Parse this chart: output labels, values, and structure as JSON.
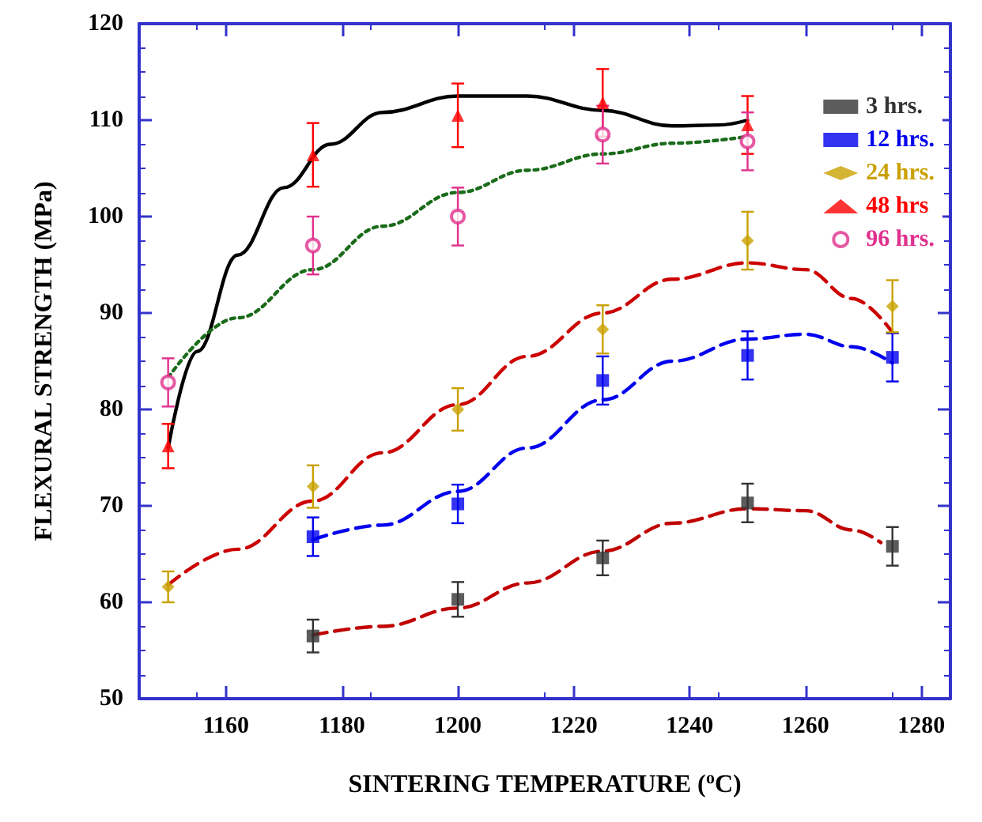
{
  "chart_data": {
    "type": "scatter",
    "xlabel": "SINTERING TEMPERATURE ($^{o}$C)",
    "ylabel": "FLEXURAL STRENGTH (MPa)",
    "xlim": [
      1145,
      1285
    ],
    "xticks": [
      1160,
      1180,
      1200,
      1220,
      1240,
      1260,
      1280
    ],
    "ylim": [
      50,
      120
    ],
    "yticks": [
      50,
      60,
      70,
      80,
      90,
      100,
      110,
      120
    ],
    "grid": false,
    "legend": "top right",
    "series": [
      {
        "name": "3 hrs.",
        "color": "#333333",
        "marker": "square",
        "x": [
          1175,
          1200,
          1225,
          1250,
          1275
        ],
        "values": [
          56.5,
          60.3,
          64.6,
          70.3,
          65.8
        ],
        "errors": [
          1.7,
          1.8,
          1.8,
          2,
          2
        ]
      },
      {
        "name": "12 hrs.",
        "color": "#0000ee",
        "marker": "square",
        "x": [
          1175,
          1200,
          1225,
          1250,
          1275
        ],
        "values": [
          66.8,
          70.2,
          83,
          85.6,
          85.4
        ],
        "errors": [
          2,
          2,
          2.5,
          2.5,
          2.5
        ]
      },
      {
        "name": "24 hrs.",
        "color": "#c9a100",
        "marker": "diamond",
        "x": [
          1150,
          1175,
          1200,
          1225,
          1250,
          1275
        ],
        "values": [
          61.6,
          72,
          80,
          88.3,
          97.5,
          90.7
        ],
        "errors": [
          1.6,
          2.2,
          2.2,
          2.5,
          3,
          2.7
        ]
      },
      {
        "name": "48 hrs",
        "color": "#ff0000",
        "marker": "triangle",
        "x": [
          1150,
          1175,
          1200,
          1225,
          1250
        ],
        "values": [
          76.2,
          106.4,
          110.5,
          111.8,
          109.5
        ],
        "errors": [
          2.3,
          3.3,
          3.3,
          3.5,
          3
        ]
      },
      {
        "name": "96 hrs.",
        "color": "#e0308c",
        "marker": "circle",
        "x": [
          1150,
          1175,
          1200,
          1225,
          1250
        ],
        "values": [
          82.8,
          97,
          100,
          108.5,
          107.8
        ],
        "errors": [
          2.5,
          3,
          3,
          3,
          3
        ]
      },
      {
        "type": "line",
        "color": "#c00000",
        "line_style": "dashed",
        "marker": "none",
        "x": [
          1175,
          1187,
          1200,
          1212,
          1225,
          1237,
          1250,
          1260,
          1268,
          1273
        ],
        "values": [
          56.6,
          57.5,
          59.4,
          62,
          65.3,
          68.2,
          69.7,
          69.5,
          67.5,
          66.2
        ]
      },
      {
        "type": "line",
        "color": "#0000ee",
        "line_style": "dashed",
        "marker": "none",
        "x": [
          1175,
          1187,
          1200,
          1212,
          1225,
          1237,
          1250,
          1260,
          1268,
          1275
        ],
        "values": [
          66.5,
          68,
          71.5,
          76,
          81,
          85,
          87.3,
          87.8,
          86.5,
          84.8
        ]
      },
      {
        "type": "line",
        "color": "#cc0000",
        "line_style": "dashed",
        "marker": "none",
        "x": [
          1150,
          1162,
          1175,
          1187,
          1200,
          1212,
          1225,
          1237,
          1250,
          1260,
          1268,
          1275
        ],
        "values": [
          61.8,
          65.5,
          70.5,
          75.5,
          80.5,
          85.5,
          90,
          93.5,
          95.2,
          94.5,
          91.5,
          88
        ]
      },
      {
        "type": "line",
        "color": "#000000",
        "line_style": "solid",
        "marker": "none",
        "x": [
          1150,
          1155,
          1162,
          1170,
          1178,
          1187,
          1200,
          1212,
          1225,
          1237,
          1245,
          1250
        ],
        "values": [
          76,
          86,
          96,
          103,
          107.5,
          110.8,
          112.5,
          112.5,
          111,
          109.4,
          109.5,
          110
        ]
      },
      {
        "type": "line",
        "color": "#1a6b1a",
        "line_style": "dotted",
        "marker": "none",
        "x": [
          1150,
          1162,
          1175,
          1187,
          1200,
          1212,
          1225,
          1237,
          1250
        ],
        "values": [
          83.3,
          89.5,
          94.5,
          99,
          102.5,
          104.8,
          106.5,
          107.6,
          108.3
        ]
      }
    ]
  }
}
